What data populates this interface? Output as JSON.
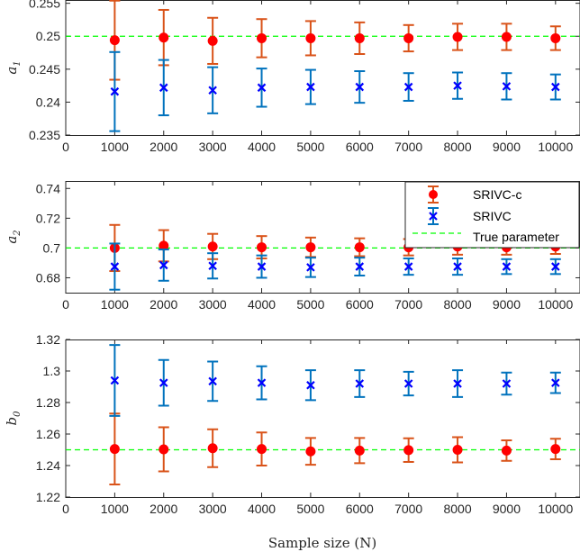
{
  "colors": {
    "srivc_c": "#ff0000",
    "srivc_c_err": "#d95319",
    "srivc": "#0000ff",
    "srivc_err": "#0072bd",
    "true_param": "#00ff00"
  },
  "chart_data": [
    {
      "type": "errorbar",
      "ylabel": "a",
      "ylabel_sub": "1",
      "xlabel": "",
      "xlim": [
        0,
        10500
      ],
      "ylim": [
        0.235,
        0.2555
      ],
      "x_ticks": [
        0,
        1000,
        2000,
        3000,
        4000,
        5000,
        6000,
        7000,
        8000,
        9000,
        10000
      ],
      "x_tick_labels": [
        "0",
        "1000",
        "2000",
        "3000",
        "4000",
        "5000",
        "6000",
        "7000",
        "8000",
        "9000",
        "10000"
      ],
      "y_ticks": [
        0.235,
        0.24,
        0.245,
        0.25,
        0.255
      ],
      "y_tick_labels": [
        "0.235",
        "0.24",
        "0.245",
        "0.25",
        "0.255"
      ],
      "true_value": 0.25,
      "legend": null,
      "series": [
        {
          "key": "srivc_c",
          "name": "SRIVC-c",
          "marker": "circle",
          "x": [
            1000,
            2000,
            3000,
            4000,
            5000,
            6000,
            7000,
            8000,
            9000,
            10000
          ],
          "y": [
            0.2494,
            0.2498,
            0.2493,
            0.2497,
            0.2497,
            0.2497,
            0.2497,
            0.2499,
            0.2499,
            0.2497
          ],
          "err": [
            0.006,
            0.0042,
            0.0035,
            0.0029,
            0.0026,
            0.0024,
            0.002,
            0.002,
            0.002,
            0.0018
          ]
        },
        {
          "key": "srivc",
          "name": "SRIVC",
          "marker": "x",
          "x": [
            1000,
            2000,
            3000,
            4000,
            5000,
            6000,
            7000,
            8000,
            9000,
            10000
          ],
          "y": [
            0.2416,
            0.2422,
            0.2418,
            0.2422,
            0.2423,
            0.2423,
            0.2423,
            0.2425,
            0.2424,
            0.2423
          ],
          "err": [
            0.006,
            0.0042,
            0.0035,
            0.0029,
            0.0026,
            0.0024,
            0.0021,
            0.002,
            0.002,
            0.0019
          ]
        }
      ]
    },
    {
      "type": "errorbar",
      "ylabel": "a",
      "ylabel_sub": "2",
      "xlabel": "",
      "xlim": [
        0,
        10500
      ],
      "ylim": [
        0.67,
        0.745
      ],
      "x_ticks": [
        0,
        1000,
        2000,
        3000,
        4000,
        5000,
        6000,
        7000,
        8000,
        9000,
        10000
      ],
      "x_tick_labels": [
        "0",
        "1000",
        "2000",
        "3000",
        "4000",
        "5000",
        "6000",
        "7000",
        "8000",
        "9000",
        "10000"
      ],
      "y_ticks": [
        0.68,
        0.7,
        0.72,
        0.74
      ],
      "y_tick_labels": [
        "0.68",
        "0.7",
        "0.72",
        "0.74"
      ],
      "true_value": 0.7,
      "legend": {
        "placement": "top-right",
        "entries": [
          "SRIVC-c",
          "SRIVC",
          "True parameter"
        ]
      },
      "series": [
        {
          "key": "srivc_c",
          "name": "SRIVC-c",
          "marker": "circle",
          "x": [
            1000,
            2000,
            3000,
            4000,
            5000,
            6000,
            7000,
            8000,
            9000,
            10000
          ],
          "y": [
            0.7,
            0.7015,
            0.701,
            0.7005,
            0.7005,
            0.7005,
            0.7005,
            0.701,
            0.7005,
            0.701
          ],
          "err": [
            0.0155,
            0.0105,
            0.0085,
            0.0075,
            0.0065,
            0.006,
            0.0055,
            0.0055,
            0.005,
            0.005
          ]
        },
        {
          "key": "srivc",
          "name": "SRIVC",
          "marker": "x",
          "x": [
            1000,
            2000,
            3000,
            4000,
            5000,
            6000,
            7000,
            8000,
            9000,
            10000
          ],
          "y": [
            0.6875,
            0.6885,
            0.688,
            0.6875,
            0.687,
            0.6875,
            0.6875,
            0.6875,
            0.6875,
            0.6875
          ],
          "err": [
            0.0155,
            0.0105,
            0.0085,
            0.0075,
            0.0065,
            0.006,
            0.0055,
            0.0055,
            0.005,
            0.005
          ]
        }
      ]
    },
    {
      "type": "errorbar",
      "ylabel": "b",
      "ylabel_sub": "0",
      "xlabel": "Sample size (N)",
      "xlim": [
        0,
        10500
      ],
      "ylim": [
        1.22,
        1.32
      ],
      "x_ticks": [
        0,
        1000,
        2000,
        3000,
        4000,
        5000,
        6000,
        7000,
        8000,
        9000,
        10000
      ],
      "x_tick_labels": [
        "0",
        "1000",
        "2000",
        "3000",
        "4000",
        "5000",
        "6000",
        "7000",
        "8000",
        "9000",
        "10000"
      ],
      "y_ticks": [
        1.22,
        1.24,
        1.26,
        1.28,
        1.3,
        1.32
      ],
      "y_tick_labels": [
        "1.22",
        "1.24",
        "1.26",
        "1.28",
        "1.3",
        "1.32"
      ],
      "true_value": 1.25,
      "legend": null,
      "series": [
        {
          "key": "srivc_c",
          "name": "SRIVC-c",
          "marker": "circle",
          "x": [
            1000,
            2000,
            3000,
            4000,
            5000,
            6000,
            7000,
            8000,
            9000,
            10000
          ],
          "y": [
            1.2505,
            1.2503,
            1.251,
            1.2505,
            1.249,
            1.2495,
            1.2498,
            1.25,
            1.2495,
            1.2505
          ],
          "err": [
            0.0225,
            0.014,
            0.012,
            0.0105,
            0.0085,
            0.008,
            0.0075,
            0.008,
            0.0065,
            0.0065
          ]
        },
        {
          "key": "srivc",
          "name": "SRIVC",
          "marker": "x",
          "x": [
            1000,
            2000,
            3000,
            4000,
            5000,
            6000,
            7000,
            8000,
            9000,
            10000
          ],
          "y": [
            1.294,
            1.2925,
            1.2935,
            1.2925,
            1.291,
            1.292,
            1.292,
            1.292,
            1.292,
            1.2925
          ],
          "err": [
            0.0225,
            0.0145,
            0.0125,
            0.0105,
            0.0095,
            0.0085,
            0.0075,
            0.0085,
            0.007,
            0.0065
          ]
        }
      ]
    }
  ]
}
